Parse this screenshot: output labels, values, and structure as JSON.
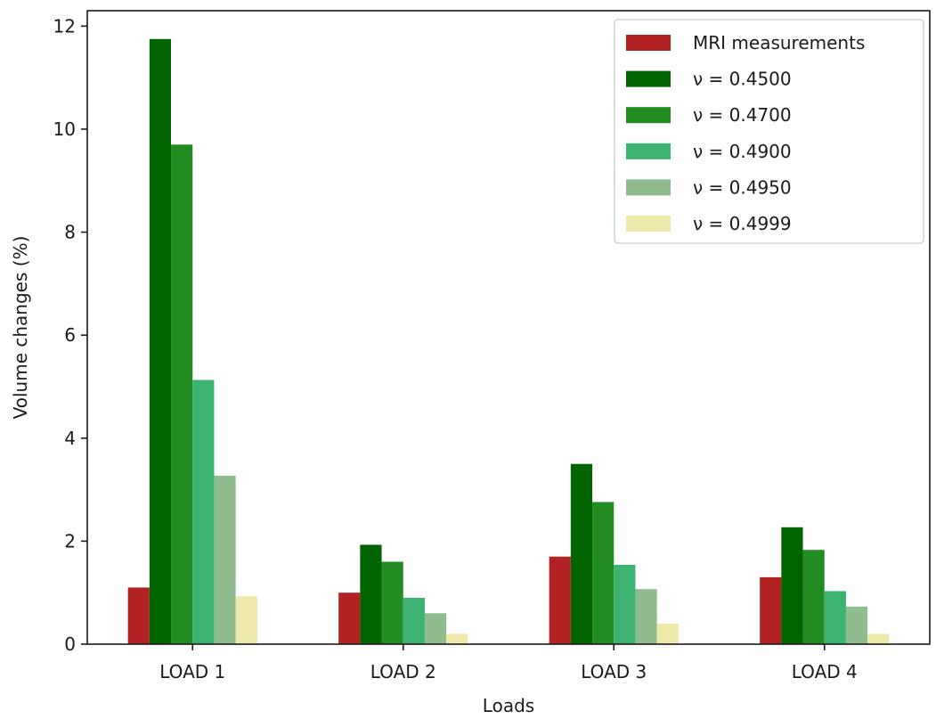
{
  "chart_data": {
    "type": "bar",
    "xlabel": "Loads",
    "ylabel": "Volume changes (%)",
    "categories": [
      "LOAD 1",
      "LOAD 2",
      "LOAD 3",
      "LOAD 4"
    ],
    "yticks": [
      "0",
      "2",
      "4",
      "6",
      "8",
      "10",
      "12"
    ],
    "ylim": [
      0,
      12.3
    ],
    "grid": false,
    "legend_position": "top-right",
    "series": [
      {
        "name": "MRI measurements",
        "color": "#b22222",
        "values": [
          1.1,
          1.0,
          1.7,
          1.3
        ]
      },
      {
        "name": "ν = 0.4500",
        "color": "#006400",
        "values": [
          11.75,
          1.93,
          3.5,
          2.27
        ]
      },
      {
        "name": "ν = 0.4700",
        "color": "#228b22",
        "values": [
          9.7,
          1.6,
          2.76,
          1.83
        ]
      },
      {
        "name": "ν = 0.4900",
        "color": "#3cb371",
        "values": [
          5.13,
          0.9,
          1.54,
          1.03
        ]
      },
      {
        "name": "ν = 0.4950",
        "color": "#8fbc8f",
        "values": [
          3.27,
          0.6,
          1.07,
          0.73
        ]
      },
      {
        "name": "ν = 0.4999",
        "color": "#eee8aa",
        "values": [
          0.93,
          0.2,
          0.4,
          0.2
        ]
      }
    ]
  }
}
